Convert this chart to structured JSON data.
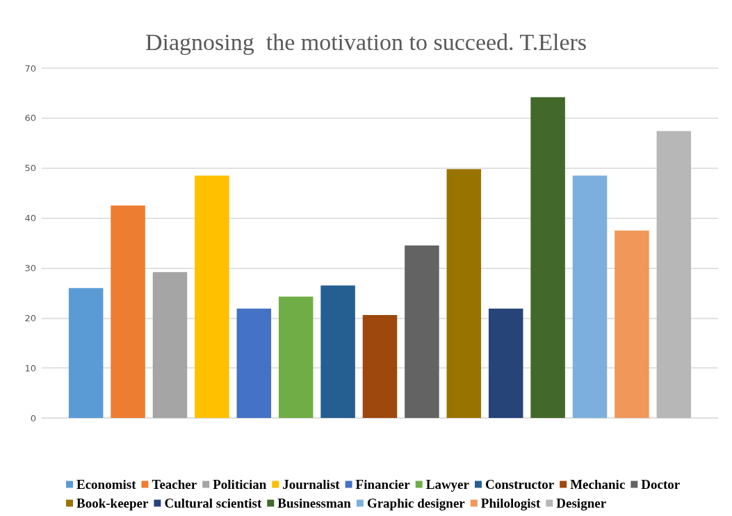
{
  "chart_data": {
    "type": "bar",
    "title": "Diagnosing  the motivation to succeed. T.Elers",
    "categories": [
      null
    ],
    "series": [
      {
        "name": "Economist",
        "color": "#5b9bd5",
        "values": [
          26
        ]
      },
      {
        "name": "Teacher",
        "color": "#ed7d31",
        "values": [
          42.5
        ]
      },
      {
        "name": "Politician",
        "color": "#a5a5a5",
        "values": [
          29.2
        ]
      },
      {
        "name": "Journalist",
        "color": "#ffc000",
        "values": [
          48.5
        ]
      },
      {
        "name": "Financier",
        "color": "#4472c4",
        "values": [
          21.9
        ]
      },
      {
        "name": "Lawyer",
        "color": "#70ad47",
        "values": [
          24.3
        ]
      },
      {
        "name": "Constructor",
        "color": "#255e91",
        "values": [
          26.5
        ]
      },
      {
        "name": "Mechanic",
        "color": "#9e480e",
        "values": [
          20.6
        ]
      },
      {
        "name": "Doctor",
        "color": "#636363",
        "values": [
          34.5
        ]
      },
      {
        "name": "Book-keeper",
        "color": "#997300",
        "values": [
          49.8
        ]
      },
      {
        "name": "Cultural scientist",
        "color": "#264478",
        "values": [
          21.9
        ]
      },
      {
        "name": "Businessman",
        "color": "#43682b",
        "values": [
          64.2
        ]
      },
      {
        "name": "Graphic designer",
        "color": "#7cafdd",
        "values": [
          48.5
        ]
      },
      {
        "name": "Philologist",
        "color": "#f1975a",
        "values": [
          37.5
        ]
      },
      {
        "name": "Designer",
        "color": "#b7b7b7",
        "values": [
          57.4
        ]
      }
    ],
    "ylim": [
      0,
      70
    ],
    "yticks": [
      0,
      10,
      20,
      30,
      40,
      50,
      60,
      70
    ],
    "grid": "y",
    "legend": "bottom"
  }
}
